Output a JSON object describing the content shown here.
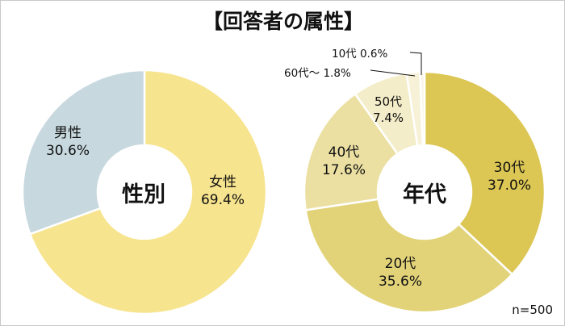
{
  "title": "【回答者の属性】",
  "sample_size": "n=500",
  "chart_data": [
    {
      "type": "pie",
      "variant": "donut",
      "center_label": "性別",
      "categories": [
        "女性",
        "男性"
      ],
      "values": [
        69.4,
        30.6
      ],
      "labels": [
        "69.4%",
        "30.6%"
      ],
      "colors": [
        "#f7e48e",
        "#c7d9df"
      ]
    },
    {
      "type": "pie",
      "variant": "donut",
      "center_label": "年代",
      "categories": [
        "30代",
        "20代",
        "40代",
        "50代",
        "60代～",
        "10代"
      ],
      "values": [
        37.0,
        35.6,
        17.6,
        7.4,
        1.8,
        0.6
      ],
      "labels": [
        "37.0%",
        "35.6%",
        "17.6%",
        "7.4%",
        "1.8%",
        "0.6%"
      ],
      "colors": [
        "#dcc654",
        "#e2d379",
        "#ebe0a2",
        "#f4edc9",
        "#f7f1d8",
        "#faf6e5"
      ]
    }
  ],
  "gender": {
    "center": "性別",
    "female": {
      "name": "女性",
      "pct": "69.4%"
    },
    "male": {
      "name": "男性",
      "pct": "30.6%"
    }
  },
  "age": {
    "center": "年代",
    "a30": {
      "name": "30代",
      "pct": "37.0%"
    },
    "a20": {
      "name": "20代",
      "pct": "35.6%"
    },
    "a40": {
      "name": "40代",
      "pct": "17.6%"
    },
    "a50": {
      "name": "50代",
      "pct": "7.4%"
    },
    "a60": {
      "label": "60代～ 1.8%"
    },
    "a10": {
      "label": "10代 0.6%"
    }
  }
}
